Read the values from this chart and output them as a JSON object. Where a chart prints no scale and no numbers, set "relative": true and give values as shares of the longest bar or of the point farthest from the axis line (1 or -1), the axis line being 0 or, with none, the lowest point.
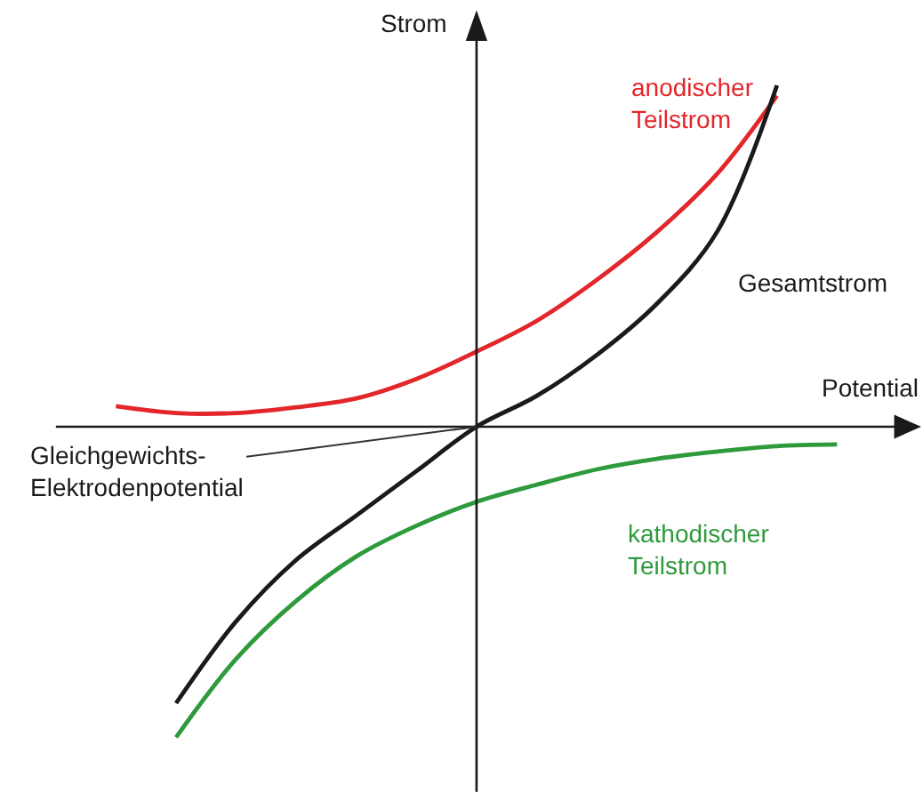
{
  "chart_data": {
    "type": "line",
    "relative": true,
    "xlabel": "Potential",
    "ylabel": "Strom",
    "categories": [
      null,
      null,
      null,
      null,
      null,
      null,
      null,
      null,
      null,
      null,
      null,
      null,
      null
    ],
    "series": [
      {
        "name": "anodischer Teilstrom",
        "color": "#e3262b",
        "values": [
          0.06,
          0.04,
          0.04,
          0.057,
          0.083,
          0.14,
          0.22,
          0.31,
          0.43,
          0.57,
          0.74,
          0.97,
          null
        ]
      },
      {
        "name": "Gesamtstrom",
        "color": "#1a1a1a",
        "values": [
          null,
          -0.81,
          -0.57,
          -0.39,
          -0.26,
          -0.13,
          0,
          0.09,
          0.21,
          0.36,
          0.57,
          1.0,
          null
        ]
      },
      {
        "name": "kathodischer Teilstrom",
        "color": "#2e9a3c",
        "values": [
          null,
          -0.91,
          -0.68,
          -0.51,
          -0.38,
          -0.29,
          -0.22,
          -0.17,
          -0.125,
          -0.094,
          -0.073,
          -0.057,
          -0.052
        ]
      }
    ],
    "annotations": [
      "Gleichgewichts-Elektrodenpotential"
    ],
    "legend": false,
    "marker": "none",
    "line_style": "solid"
  }
}
